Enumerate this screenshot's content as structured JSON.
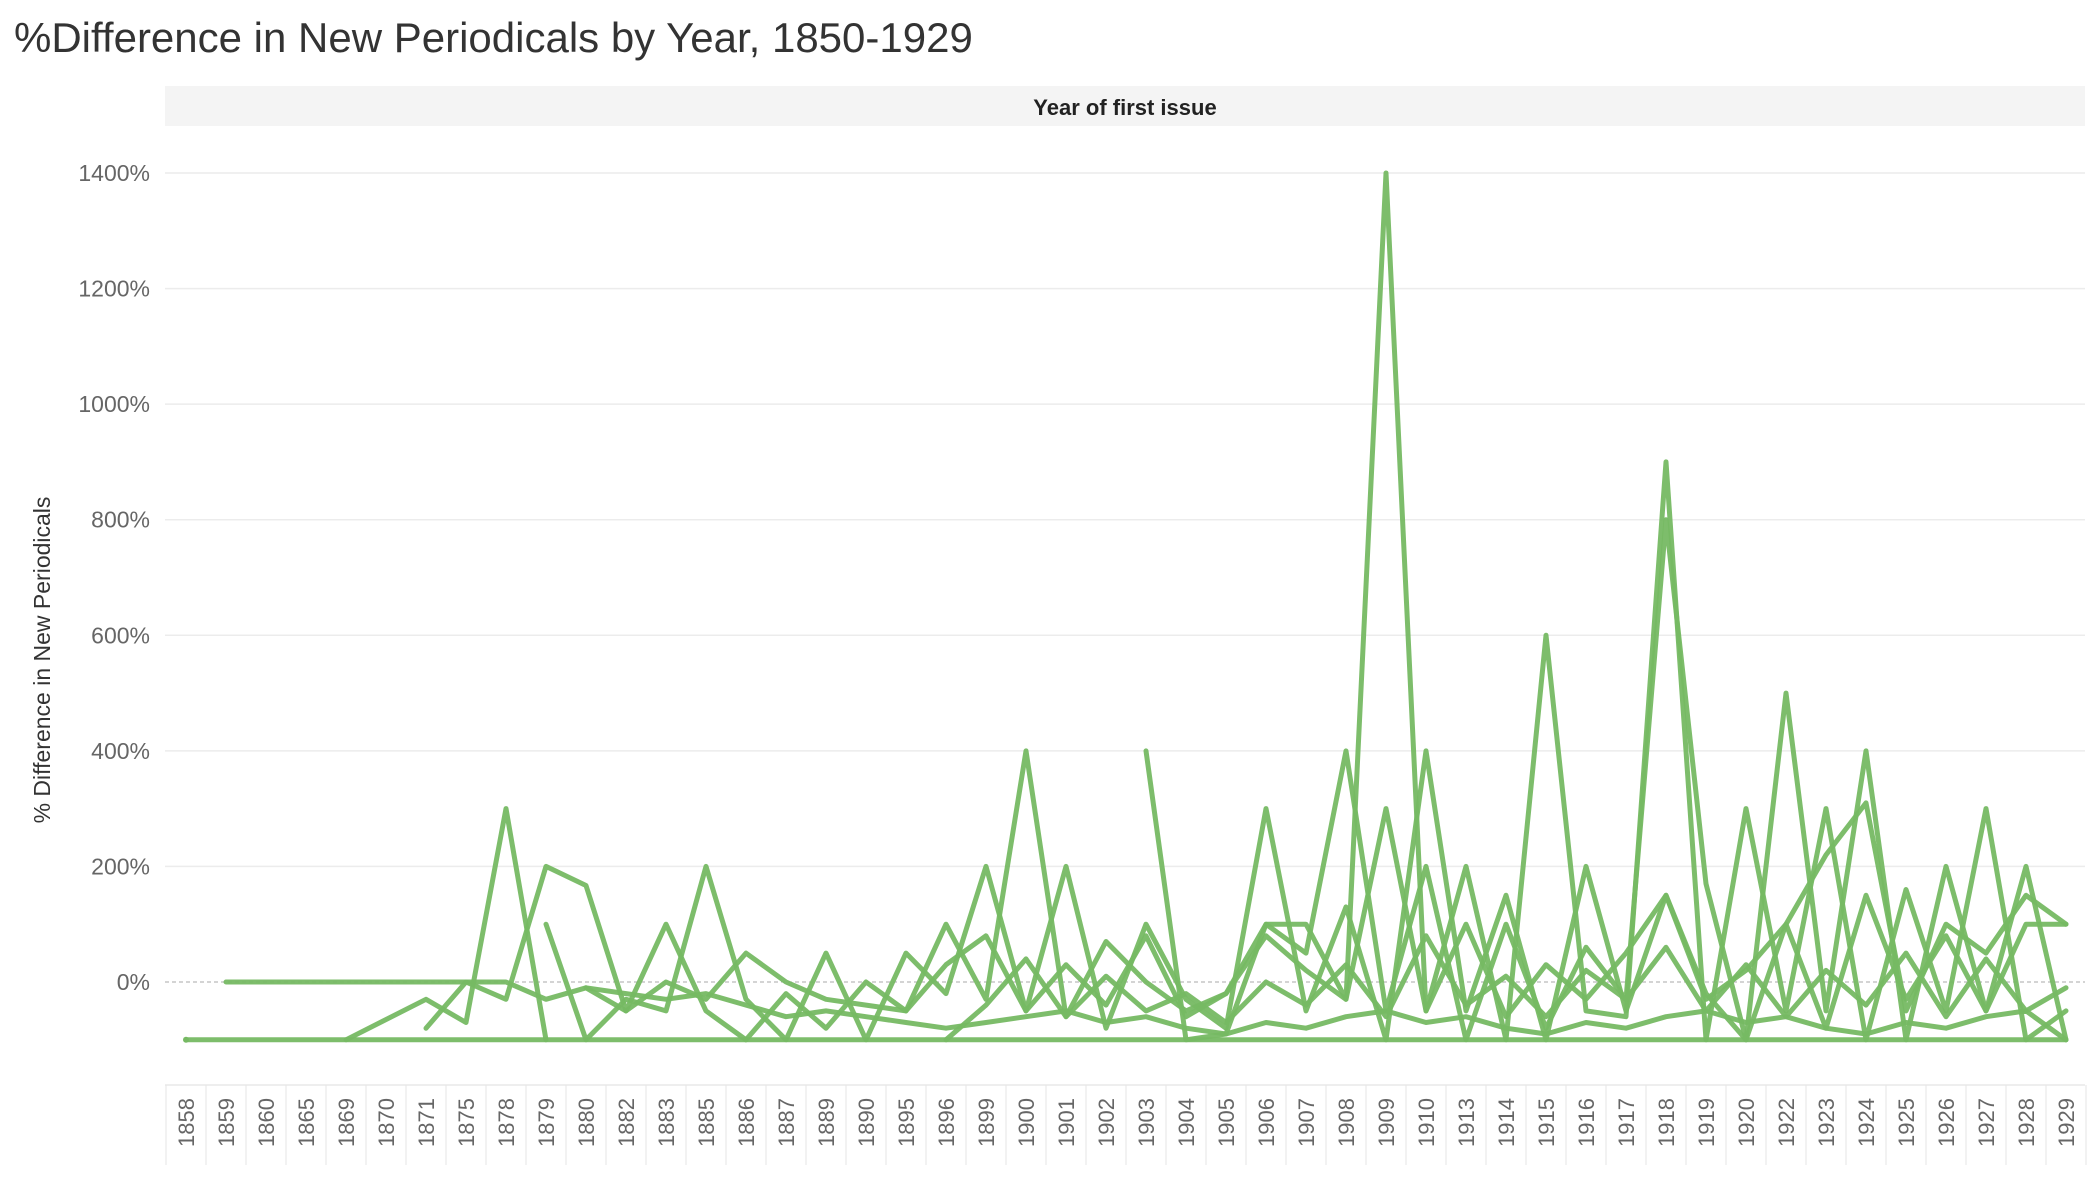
{
  "chart_data": {
    "type": "line",
    "title": "%Difference in New Periodicals by Year, 1850-1929",
    "header_label": "Year of first issue",
    "ylabel": "% Difference in New Periodicals",
    "xlabel": "",
    "categories": [
      "1858",
      "1859",
      "1860",
      "1865",
      "1869",
      "1870",
      "1871",
      "1875",
      "1878",
      "1879",
      "1880",
      "1882",
      "1883",
      "1885",
      "1886",
      "1887",
      "1889",
      "1890",
      "1895",
      "1896",
      "1899",
      "1900",
      "1901",
      "1902",
      "1903",
      "1904",
      "1905",
      "1906",
      "1907",
      "1908",
      "1909",
      "1910",
      "1913",
      "1914",
      "1915",
      "1916",
      "1917",
      "1918",
      "1919",
      "1920",
      "1922",
      "1923",
      "1924",
      "1925",
      "1926",
      "1927",
      "1928",
      "1929"
    ],
    "yticks": [
      0,
      200,
      400,
      600,
      800,
      1000,
      1200,
      1400
    ],
    "ytick_labels": [
      "0%",
      "200%",
      "400%",
      "600%",
      "800%",
      "1000%",
      "1200%",
      "1400%"
    ],
    "ylim": [
      -180,
      1460
    ],
    "grid": true,
    "color": "#76b963",
    "series": [
      {
        "values": [
          -100,
          -100,
          -100,
          -100,
          -100,
          -100,
          -100,
          -100,
          -100,
          -100,
          -100,
          -100,
          -100,
          -100,
          -100,
          -100,
          -100,
          -100,
          -100,
          -100,
          -100,
          -100,
          -100,
          -100,
          -100,
          -100,
          -100,
          -100,
          -100,
          -100,
          -100,
          -100,
          -100,
          -100,
          -100,
          -100,
          -100,
          -100,
          -100,
          -100,
          -100,
          -100,
          -100,
          -100,
          -100,
          -100,
          -100,
          -100
        ]
      },
      {
        "values": [
          null,
          0,
          0,
          0,
          0,
          0,
          0,
          0,
          0,
          -30,
          -10,
          -20,
          -30,
          -20,
          -40,
          -60,
          -50,
          -60,
          -70,
          -80,
          -70,
          -60,
          -50,
          -70,
          -60,
          -80,
          -90,
          -70,
          -80,
          -60,
          -50,
          -70,
          -60,
          -80,
          -90,
          -70,
          -80,
          -60,
          -50,
          -70,
          -60,
          -80,
          -90,
          -70,
          -80,
          -60,
          -50,
          -100
        ]
      },
      {
        "values": [
          -100,
          null,
          null,
          null,
          null,
          null,
          null,
          null,
          null,
          null,
          null,
          null,
          null,
          null,
          null,
          null,
          null,
          null,
          null,
          null,
          null,
          null,
          null,
          null,
          null,
          null,
          null,
          null,
          null,
          null,
          null,
          null,
          null,
          null,
          null,
          null,
          null,
          null,
          null,
          null,
          null,
          null,
          null,
          null,
          null,
          null,
          null,
          null
        ]
      },
      {
        "values": [
          null,
          null,
          null,
          null,
          -100,
          null,
          -30,
          -70,
          300,
          -100,
          null,
          null,
          null,
          null,
          null,
          null,
          null,
          null,
          null,
          null,
          null,
          null,
          null,
          null,
          null,
          null,
          null,
          null,
          null,
          null,
          null,
          null,
          null,
          null,
          null,
          null,
          null,
          null,
          null,
          null,
          null,
          null,
          null,
          null,
          null,
          null,
          null,
          null
        ]
      },
      {
        "values": [
          null,
          null,
          null,
          null,
          null,
          null,
          -80,
          0,
          -30,
          200,
          167,
          -50,
          100,
          -50,
          -100,
          null,
          null,
          null,
          null,
          null,
          null,
          null,
          null,
          null,
          null,
          null,
          null,
          null,
          null,
          null,
          null,
          null,
          null,
          null,
          null,
          null,
          null,
          null,
          null,
          null,
          null,
          null,
          null,
          null,
          null,
          null,
          null,
          null
        ]
      },
      {
        "values": [
          null,
          null,
          null,
          null,
          null,
          null,
          null,
          null,
          null,
          100,
          -100,
          -30,
          -50,
          200,
          -30,
          -100,
          50,
          -100,
          50,
          -20,
          200,
          -50,
          200,
          -80,
          100,
          -30,
          -80,
          300,
          -50,
          130,
          -100,
          400,
          -50,
          150,
          -100,
          200,
          -50,
          150,
          -20,
          -100,
          500,
          -50,
          400,
          -100,
          200,
          -50,
          200,
          -100
        ]
      },
      {
        "values": [
          null,
          null,
          null,
          null,
          null,
          null,
          null,
          null,
          null,
          null,
          -10,
          -50,
          0,
          -30,
          50,
          0,
          -30,
          -40,
          -50,
          100,
          -30,
          400,
          -60,
          70,
          0,
          -50,
          -20,
          100,
          100,
          -30,
          1400,
          -50,
          200,
          -100,
          600,
          -50,
          -60,
          900,
          -100,
          300,
          -50,
          300,
          -100,
          160,
          -50,
          300,
          -100,
          -50
        ]
      },
      {
        "values": [
          null,
          null,
          null,
          null,
          null,
          null,
          null,
          null,
          null,
          null,
          null,
          null,
          null,
          null,
          null,
          null,
          null,
          null,
          null,
          null,
          null,
          null,
          null,
          null,
          400,
          -100,
          -90,
          100,
          50,
          400,
          -50,
          200,
          -100,
          100,
          -80,
          60,
          -30,
          800,
          170,
          -100,
          100,
          220,
          310,
          -50,
          100,
          50,
          150,
          100
        ]
      },
      {
        "values": [
          null,
          null,
          null,
          null,
          null,
          null,
          null,
          null,
          null,
          null,
          null,
          null,
          null,
          null,
          -100,
          -20,
          -80,
          0,
          -50,
          30,
          80,
          -50,
          30,
          -40,
          80,
          -60,
          -20,
          80,
          20,
          -30,
          300,
          -50,
          100,
          -60,
          30,
          -30,
          50,
          150,
          -30,
          20,
          100,
          -80,
          150,
          -30,
          80,
          -50,
          100,
          100
        ]
      },
      {
        "values": [
          null,
          null,
          null,
          null,
          null,
          null,
          null,
          null,
          null,
          null,
          null,
          null,
          null,
          null,
          null,
          null,
          null,
          null,
          null,
          -100,
          -40,
          40,
          -60,
          10,
          -50,
          -20,
          -70,
          0,
          -40,
          30,
          -60,
          80,
          -40,
          10,
          -60,
          20,
          -30,
          60,
          -50,
          30,
          -60,
          20,
          -40,
          50,
          -60,
          40,
          -50,
          -10
        ]
      }
    ]
  }
}
